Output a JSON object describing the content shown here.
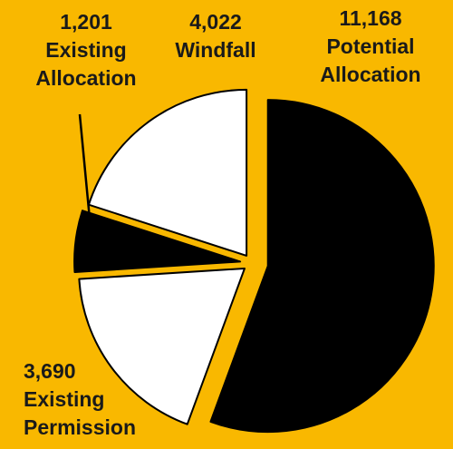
{
  "chart_data": {
    "type": "pie",
    "title": "",
    "slices": [
      {
        "label_lines": [
          "11,168",
          "Potential",
          "Allocation"
        ],
        "value": 11168,
        "display": "11,168",
        "color": "#000000"
      },
      {
        "label_lines": [
          "3,690",
          "Existing",
          "Permission"
        ],
        "value": 3690,
        "display": "3,690",
        "color": "#ffffff"
      },
      {
        "label_lines": [
          "1,201",
          "Existing",
          "Allocation"
        ],
        "value": 1201,
        "display": "1,201",
        "color": "#000000"
      },
      {
        "label_lines": [
          "4,022",
          "Windfall"
        ],
        "value": 4022,
        "display": "4,022",
        "color": "#ffffff"
      }
    ],
    "background": "#f9b800",
    "stroke_color": "#000000",
    "legend": "none"
  }
}
